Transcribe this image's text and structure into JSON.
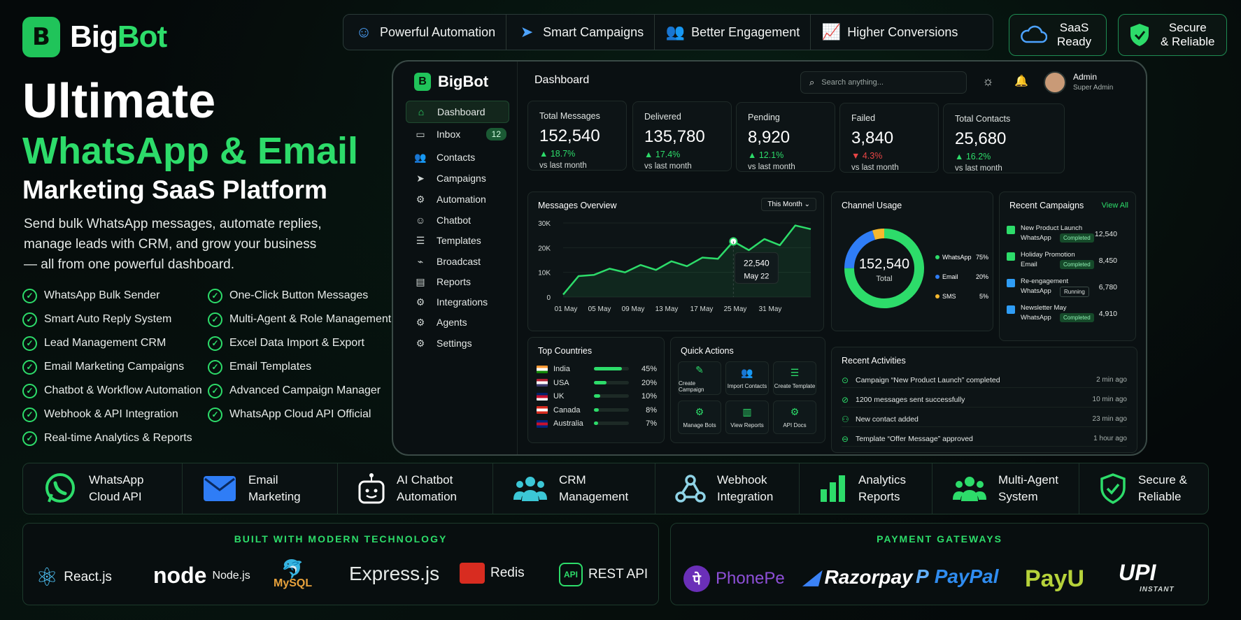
{
  "brand": {
    "name_a": "Big",
    "name_b": "Bot",
    "logo_letter": "B"
  },
  "hero": {
    "line1": "Ultimate",
    "line2": "WhatsApp & Email",
    "line3": "Marketing SaaS Platform",
    "desc1": "Send bulk WhatsApp messages, automate replies,",
    "desc2": "manage leads with CRM, and grow your business",
    "desc3": "— all from one powerful dashboard."
  },
  "features_left": [
    "WhatsApp Bulk Sender",
    "Smart Auto Reply System",
    "Lead Management CRM",
    "Email Marketing Campaigns",
    "Chatbot & Workflow Automation",
    "Webhook & API Integration",
    "Real-time Analytics & Reports"
  ],
  "features_right": [
    "One-Click Button Messages",
    "Multi-Agent & Role Management",
    "Excel Data Import & Export",
    "Email Templates",
    "Advanced Campaign Manager",
    "WhatsApp Cloud API Official"
  ],
  "top_pills": [
    "Powerful Automation",
    "Smart Campaigns",
    "Better Engagement",
    "Higher Conversions"
  ],
  "badges": [
    {
      "l1": "SaaS",
      "l2": "Ready"
    },
    {
      "l1": "Secure",
      "l2": "& Reliable"
    }
  ],
  "dashboard": {
    "brand": "BigBot",
    "header": "Dashboard",
    "search_placeholder": "Search anything...",
    "user_name": "Admin",
    "user_role": "Super Admin",
    "nav": [
      {
        "label": "Dashboard",
        "icon": "home-icon"
      },
      {
        "label": "Inbox",
        "icon": "chat-icon",
        "count": "12"
      },
      {
        "label": "Contacts",
        "icon": "users-icon"
      },
      {
        "label": "Campaigns",
        "icon": "send-icon"
      },
      {
        "label": "Automation",
        "icon": "automation-icon"
      },
      {
        "label": "Chatbot",
        "icon": "bot-icon"
      },
      {
        "label": "Templates",
        "icon": "template-icon"
      },
      {
        "label": "Broadcast",
        "icon": "broadcast-icon"
      },
      {
        "label": "Reports",
        "icon": "reports-icon"
      },
      {
        "label": "Integrations",
        "icon": "integration-icon"
      },
      {
        "label": "Agents",
        "icon": "agents-icon"
      },
      {
        "label": "Settings",
        "icon": "gear-icon"
      }
    ],
    "stats": [
      {
        "label": "Total Messages",
        "value": "152,540",
        "change": "▲ 18.7%",
        "trend": "up",
        "vs": "vs last month"
      },
      {
        "label": "Delivered",
        "value": "135,780",
        "change": "▲ 17.4%",
        "trend": "up",
        "vs": "vs last month"
      },
      {
        "label": "Pending",
        "value": "8,920",
        "change": "▲ 12.1%",
        "trend": "up",
        "vs": "vs last month"
      },
      {
        "label": "Failed",
        "value": "3,840",
        "change": "▼ 4.3%",
        "trend": "down",
        "vs": "vs last month"
      },
      {
        "label": "Total Contacts",
        "value": "25,680",
        "change": "▲ 16.2%",
        "trend": "up",
        "vs": "vs last month"
      }
    ],
    "overview": {
      "title": "Messages Overview",
      "period": "This Month",
      "tooltip_value": "22,540",
      "tooltip_date": "May 22",
      "y_ticks": [
        "30K",
        "20K",
        "10K",
        "0"
      ],
      "x_ticks": [
        "01 May",
        "05 May",
        "09 May",
        "13 May",
        "17 May",
        "25 May",
        "31 May"
      ]
    },
    "channel": {
      "title": "Channel Usage",
      "total": "152,540",
      "total_label": "Total",
      "items": [
        {
          "name": "WhatsApp",
          "pct": "75%",
          "value": 75,
          "color": "#2ddc6a"
        },
        {
          "name": "Email",
          "pct": "20%",
          "value": 20,
          "color": "#2f7df6"
        },
        {
          "name": "SMS",
          "pct": "5%",
          "value": 5,
          "color": "#f5b82e"
        }
      ]
    },
    "campaigns": {
      "title": "Recent Campaigns",
      "view_all": "View All",
      "items": [
        {
          "name": "New Product Launch",
          "channel": "WhatsApp",
          "status": "Completed",
          "count": "12,540",
          "color": "#2ddc6a"
        },
        {
          "name": "Holiday Promotion",
          "channel": "Email",
          "status": "Completed",
          "count": "8,450",
          "color": "#2ddc6a"
        },
        {
          "name": "Re-engagement",
          "channel": "WhatsApp",
          "status": "Running",
          "count": "6,780",
          "color": "#2f9df6"
        },
        {
          "name": "Newsletter May",
          "channel": "WhatsApp",
          "status": "Completed",
          "count": "4,910",
          "color": "#2f9df6"
        }
      ]
    },
    "countries": {
      "title": "Top Countries",
      "items": [
        {
          "name": "India",
          "pct": "45%",
          "value": 45
        },
        {
          "name": "USA",
          "pct": "20%",
          "value": 20
        },
        {
          "name": "UK",
          "pct": "10%",
          "value": 10
        },
        {
          "name": "Canada",
          "pct": "8%",
          "value": 8
        },
        {
          "name": "Australia",
          "pct": "7%",
          "value": 7
        }
      ]
    },
    "quick": {
      "title": "Quick Actions",
      "items": [
        "Create Campaign",
        "Import Contacts",
        "Create Template",
        "Manage Bots",
        "View Reports",
        "API Docs"
      ]
    },
    "activities": {
      "title": "Recent Activities",
      "items": [
        {
          "text": "Campaign “New Product Launch” completed",
          "time": "2 min ago"
        },
        {
          "text": "1200 messages sent successfully",
          "time": "10 min ago"
        },
        {
          "text": "New contact added",
          "time": "23 min ago"
        },
        {
          "text": "Template “Offer Message” approved",
          "time": "1 hour ago"
        }
      ]
    }
  },
  "chart_data": {
    "type": "line",
    "title": "Messages Overview",
    "x": [
      "01 May",
      "03 May",
      "05 May",
      "07 May",
      "09 May",
      "11 May",
      "13 May",
      "15 May",
      "17 May",
      "19 May",
      "21 May",
      "22 May",
      "23 May",
      "25 May",
      "27 May",
      "29 May",
      "31 May"
    ],
    "y": [
      1000,
      8500,
      9000,
      11500,
      10000,
      13000,
      11000,
      14500,
      12500,
      16000,
      15500,
      22540,
      19000,
      23500,
      21000,
      29000,
      27500
    ],
    "ylim": [
      0,
      30000
    ],
    "grid": true
  },
  "bottom_strip": [
    {
      "l1": "WhatsApp",
      "l2": "Cloud API",
      "icon": "whatsapp-icon"
    },
    {
      "l1": "Email",
      "l2": "Marketing",
      "icon": "email-icon"
    },
    {
      "l1": "AI Chatbot",
      "l2": "Automation",
      "icon": "robot-icon"
    },
    {
      "l1": "CRM",
      "l2": "Management",
      "icon": "crm-icon"
    },
    {
      "l1": "Webhook",
      "l2": "Integration",
      "icon": "webhook-icon"
    },
    {
      "l1": "Analytics",
      "l2": "Reports",
      "icon": "analytics-icon"
    },
    {
      "l1": "Multi-Agent",
      "l2": "System",
      "icon": "multi-agent-icon"
    },
    {
      "l1": "Secure &",
      "l2": "Reliable",
      "icon": "shield-icon"
    }
  ],
  "tech": {
    "title": "BUILT WITH MODERN TECHNOLOGY",
    "items": [
      "React.js",
      "Node.js",
      "MySQL",
      "Express.js",
      "Redis",
      "REST API"
    ],
    "node_logo": "node",
    "api_badge": "API"
  },
  "payments": {
    "title": "PAYMENT GATEWAYS",
    "items": [
      "PhonePe",
      "Razorpay",
      "PayPal",
      "PayU",
      "UPI"
    ],
    "upi_sub": "INSTANT"
  }
}
